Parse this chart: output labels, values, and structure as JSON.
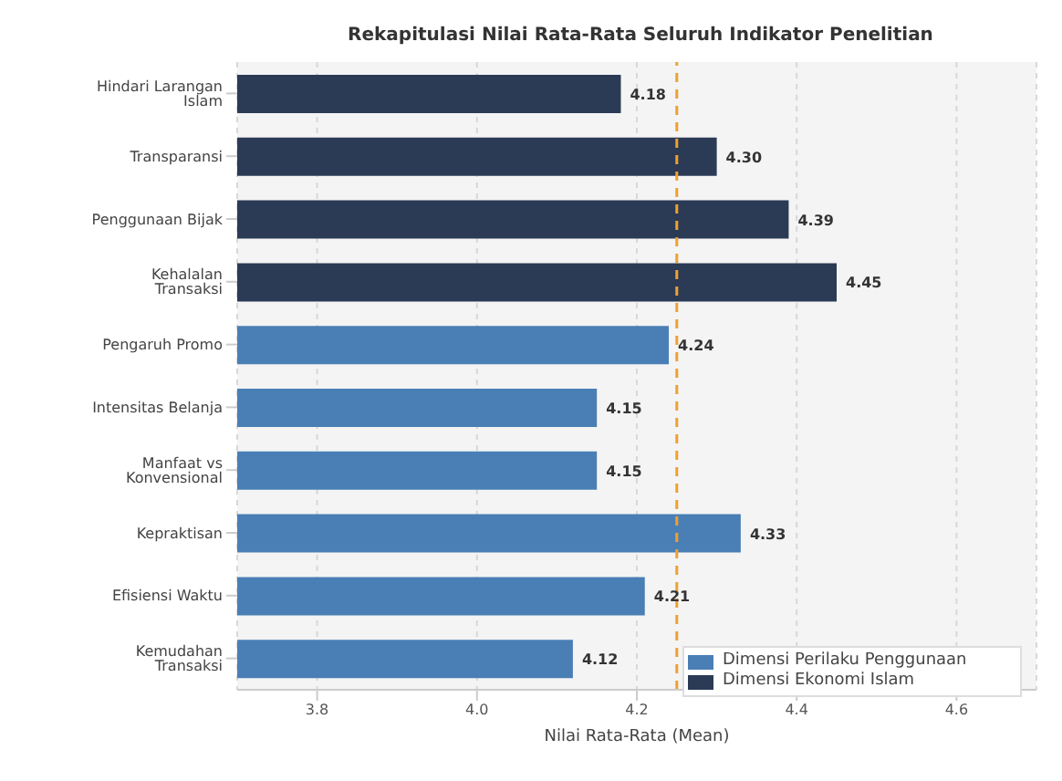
{
  "chart_data": {
    "type": "bar",
    "orientation": "horizontal",
    "title": "Rekapitulasi Nilai Rata-Rata Seluruh Indikator Penelitian",
    "xlabel": "Nilai Rata-Rata (Mean)",
    "categories": [
      "Hindari Larangan Islam",
      "Transparansi",
      "Penggunaan Bijak",
      "Kehalalan Transaksi",
      "Pengaruh Promo",
      "Intensitas Belanja",
      "Manfaat vs Konvensional",
      "Kepraktisan",
      "Efisiensi Waktu",
      "Kemudahan Transaksi"
    ],
    "series": [
      {
        "name": "Dimensi Perilaku Penggunaan",
        "color": "#4a7fb5",
        "values": [
          null,
          null,
          null,
          null,
          4.24,
          4.15,
          4.15,
          4.33,
          4.21,
          4.12
        ],
        "value_labels": [
          null,
          null,
          null,
          null,
          "4.24",
          "4.15",
          "4.15",
          "4.33",
          "4.21",
          "4.12"
        ]
      },
      {
        "name": "Dimensi Ekonomi Islam",
        "color": "#2b3a55",
        "values": [
          4.18,
          4.3,
          4.39,
          4.45,
          null,
          null,
          null,
          null,
          null,
          null
        ],
        "value_labels": [
          "4.18",
          "4.30",
          "4.39",
          "4.45",
          null,
          null,
          null,
          null,
          null,
          null
        ]
      }
    ],
    "xlim": [
      3.7,
      4.7
    ],
    "xticks": [
      {
        "value": 3.8,
        "label": "3.8"
      },
      {
        "value": 4.0,
        "label": "4.0"
      },
      {
        "value": 4.2,
        "label": "4.2"
      },
      {
        "value": 4.4,
        "label": "4.4"
      },
      {
        "value": 4.6,
        "label": "4.6"
      }
    ],
    "ref_lines": [
      {
        "axis": "x",
        "value": 4.25,
        "label": null,
        "color": "#f0a030",
        "line_style": "dashed"
      }
    ],
    "grid": "x",
    "legend": "bottom right"
  }
}
